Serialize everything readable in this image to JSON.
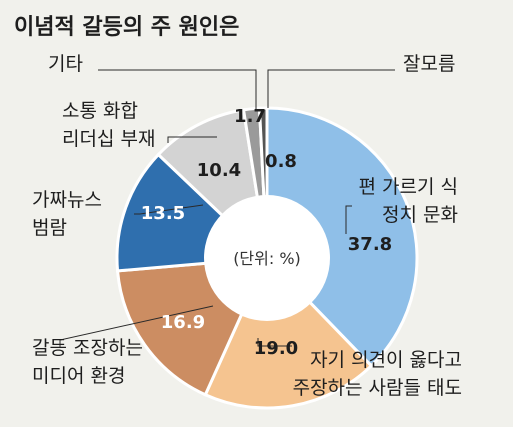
{
  "chart_data": {
    "type": "pie",
    "title": "이념적 갈등의 주 원인은",
    "unit_label": "(단위: %)",
    "slices": [
      {
        "lines": [
          "편 가르기 식",
          "정치 문화"
        ],
        "value": 37.8,
        "value_label": "37.8",
        "color": "#8fbfe8",
        "value_color": "#1e1e1e"
      },
      {
        "lines": [
          "자기 의견이 옳다고",
          "주장하는 사람들 태도"
        ],
        "value": 19.0,
        "value_label": "19.0",
        "color": "#f5c490",
        "value_color": "#1e1e1e"
      },
      {
        "lines": [
          "갈등 조장하는",
          "미디어 환경"
        ],
        "value": 16.9,
        "value_label": "16.9",
        "color": "#cc8d62",
        "value_color": "#ffffff"
      },
      {
        "lines": [
          "가짜뉴스",
          "범람"
        ],
        "value": 13.5,
        "value_label": "13.5",
        "color": "#2f6fae",
        "value_color": "#ffffff"
      },
      {
        "lines": [
          "소통 화합",
          "리더십 부재"
        ],
        "value": 10.4,
        "value_label": "10.4",
        "color": "#d3d3d3",
        "value_color": "#1e1e1e"
      },
      {
        "lines": [
          "기타"
        ],
        "value": 1.7,
        "value_label": "1.7",
        "color": "#9a9a9a",
        "value_color": "#1e1e1e"
      },
      {
        "lines": [
          "잘모름"
        ],
        "value": 0.8,
        "value_label": "0.8",
        "color": "#555555",
        "value_color": "#1e1e1e"
      }
    ]
  }
}
